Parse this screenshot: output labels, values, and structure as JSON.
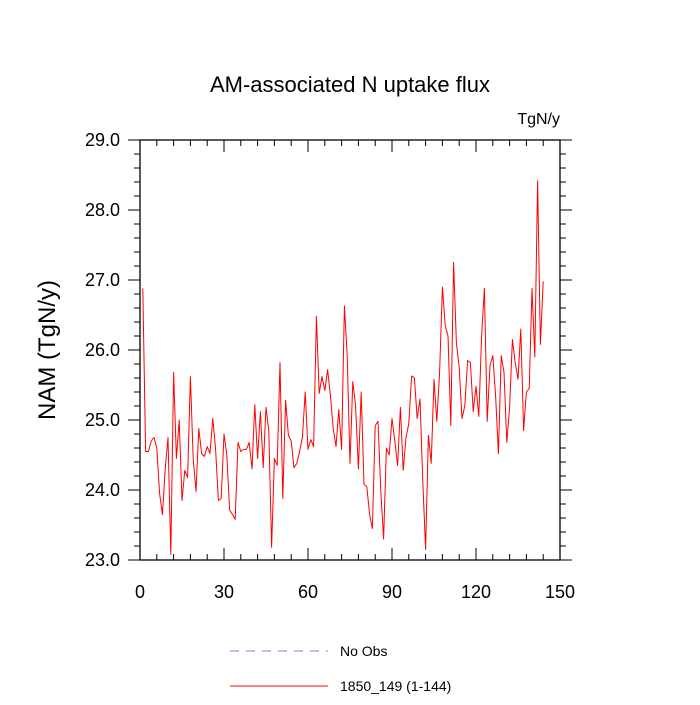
{
  "chart_data": {
    "type": "line",
    "title": "AM-associated N uptake flux",
    "units": "TgN/y",
    "ylabel": "NAM  (TgN/y)",
    "xlabel": "",
    "xlim": [
      0,
      150
    ],
    "ylim": [
      23.0,
      29.0
    ],
    "xticks": [
      0,
      30,
      60,
      90,
      120,
      150
    ],
    "yticks": [
      23.0,
      24.0,
      25.0,
      26.0,
      27.0,
      28.0,
      29.0
    ],
    "xtick_labels": [
      "0",
      "30",
      "60",
      "90",
      "120",
      "150"
    ],
    "ytick_labels": [
      "23.0",
      "24.0",
      "25.0",
      "26.0",
      "27.0",
      "28.0",
      "29.0"
    ],
    "grid": false,
    "legend_position": "bottom-center",
    "legend": [
      {
        "label": "No Obs",
        "style": "dashed",
        "color": "#8080ff"
      },
      {
        "label": "1850_149 (1-144)",
        "style": "solid",
        "color": "#ff0000"
      }
    ],
    "series": [
      {
        "name": "1850_149 (1-144)",
        "color": "#ff0000",
        "x": [
          1,
          2,
          3,
          4,
          5,
          6,
          7,
          8,
          9,
          10,
          11,
          12,
          13,
          14,
          15,
          16,
          17,
          18,
          19,
          20,
          21,
          22,
          23,
          24,
          25,
          26,
          27,
          28,
          29,
          30,
          31,
          32,
          33,
          34,
          35,
          36,
          37,
          38,
          39,
          40,
          41,
          42,
          43,
          44,
          45,
          46,
          47,
          48,
          49,
          50,
          51,
          52,
          53,
          54,
          55,
          56,
          57,
          58,
          59,
          60,
          61,
          62,
          63,
          64,
          65,
          66,
          67,
          68,
          69,
          70,
          71,
          72,
          73,
          74,
          75,
          76,
          77,
          78,
          79,
          80,
          81,
          82,
          83,
          84,
          85,
          86,
          87,
          88,
          89,
          90,
          91,
          92,
          93,
          94,
          95,
          96,
          97,
          98,
          99,
          100,
          101,
          102,
          103,
          104,
          105,
          106,
          107,
          108,
          109,
          110,
          111,
          112,
          113,
          114,
          115,
          116,
          117,
          118,
          119,
          120,
          121,
          122,
          123,
          124,
          125,
          126,
          127,
          128,
          129,
          130,
          131,
          132,
          133,
          134,
          135,
          136,
          137,
          138,
          139,
          140,
          141,
          142,
          143,
          144
        ],
        "values": [
          26.88,
          24.55,
          24.55,
          24.7,
          24.75,
          24.6,
          23.95,
          23.65,
          24.3,
          24.75,
          23.08,
          25.68,
          24.45,
          25.0,
          23.85,
          24.28,
          24.18,
          25.62,
          24.45,
          23.98,
          24.88,
          24.52,
          24.48,
          24.62,
          24.52,
          25.02,
          24.58,
          23.85,
          23.88,
          24.8,
          24.5,
          23.72,
          23.65,
          23.58,
          24.68,
          24.55,
          24.58,
          24.58,
          24.68,
          24.3,
          25.22,
          24.45,
          25.12,
          24.32,
          25.18,
          24.85,
          23.18,
          24.45,
          24.35,
          25.82,
          23.88,
          25.28,
          24.78,
          24.7,
          24.32,
          24.38,
          24.55,
          24.75,
          25.4,
          24.58,
          24.72,
          24.62,
          26.48,
          25.38,
          25.62,
          25.42,
          25.72,
          25.35,
          24.88,
          24.62,
          25.15,
          24.58,
          26.63,
          25.92,
          24.38,
          25.55,
          25.2,
          24.3,
          25.4,
          24.08,
          24.05,
          23.65,
          23.45,
          24.92,
          24.98,
          23.98,
          23.3,
          24.6,
          24.5,
          25.02,
          24.7,
          24.35,
          25.18,
          24.28,
          24.75,
          24.95,
          25.63,
          25.6,
          25.02,
          25.3,
          24.12,
          23.15,
          24.78,
          24.38,
          25.58,
          24.98,
          25.68,
          26.9,
          26.35,
          26.2,
          24.92,
          27.25,
          26.1,
          25.75,
          25.02,
          25.2,
          25.85,
          25.82,
          25.12,
          25.48,
          25.05,
          26.2,
          26.88,
          24.98,
          25.78,
          25.92,
          25.35,
          24.52,
          25.92,
          25.68,
          24.68,
          25.18,
          26.15,
          25.82,
          25.58,
          26.3,
          24.85,
          25.4,
          25.45,
          26.88,
          25.9,
          28.42,
          26.08,
          26.98
        ]
      }
    ]
  }
}
